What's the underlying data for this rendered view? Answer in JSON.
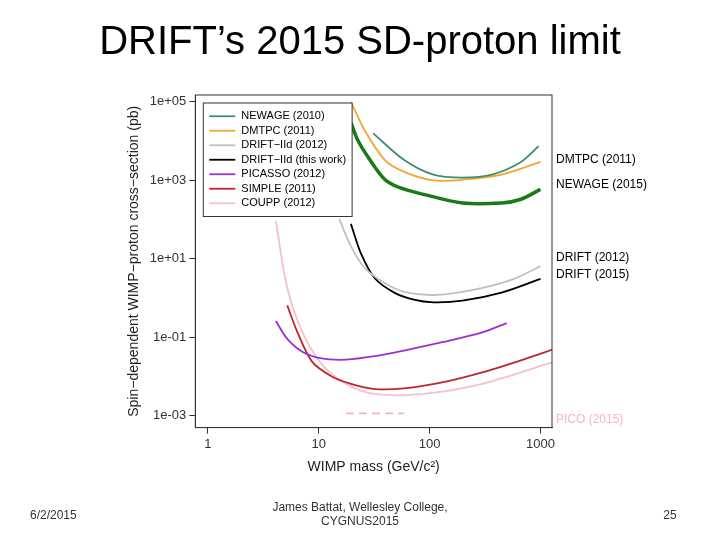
{
  "slide": {
    "title": "DRIFT’s 2015 SD-proton limit",
    "date": "6/2/2015",
    "author": "James Battat, Wellesley College, CYGNUS2015",
    "page": 25
  },
  "chart_data": {
    "type": "line",
    "x_label": "WIMP mass (GeV/c²)",
    "y_label": "Spin−dependent WIMP−proton cross−section (pb)",
    "log": true,
    "grid": false,
    "legend": "upper left",
    "xlim": [
      0.77,
      1270
    ],
    "xticks": [
      1,
      10,
      100,
      1000
    ],
    "ylim": [
      0.0005,
      150000
    ],
    "yticks": [
      {
        "value": 0.001,
        "label": "1e-03"
      },
      {
        "value": 0.1,
        "label": "1e-01"
      },
      {
        "value": 10,
        "label": "1e+01"
      },
      {
        "value": 1000,
        "label": "1e+03"
      },
      {
        "value": 100000,
        "label": "1e+05"
      }
    ],
    "series": [
      {
        "name": "NEWAGE (2010)",
        "color": "#3d8f70",
        "line_style": "solid",
        "x": [
          31,
          59,
          108,
          198,
          364,
          667,
          960
        ],
        "values": [
          15800,
          3300,
          1400,
          1180,
          1400,
          2950,
          7400
        ]
      },
      {
        "name": "DMTPC (2011)",
        "color": "#f0a830",
        "line_style": "solid",
        "x": [
          19.5,
          26,
          39.5,
          59,
          108,
          198,
          445,
          1000
        ],
        "values": [
          100000,
          18700,
          3300,
          1650,
          1000,
          1040,
          1400,
          2950
        ]
      },
      {
        "name": "DRIFT−IId (2012)",
        "color": "#c0c0c0",
        "line_style": "solid",
        "x": [
          15.3,
          19.5,
          26,
          39.5,
          59,
          108,
          242,
          545,
          1000
        ],
        "values": [
          104,
          21,
          5.8,
          2.4,
          1.45,
          1.2,
          1.6,
          2.9,
          6.5
        ]
      },
      {
        "name": "DRIFT−IId (this work)",
        "color": "#000000",
        "line_style": "solid",
        "x": [
          19.5,
          24,
          32,
          48,
          72,
          108,
          198,
          445,
          1000
        ],
        "values": [
          78,
          13.8,
          3.2,
          1.38,
          0.91,
          0.78,
          0.86,
          1.38,
          3.1
        ]
      },
      {
        "name": "PICASSO (2012)",
        "color": "#9b30d0",
        "line_style": "solid",
        "x": [
          4.1,
          5.2,
          7.1,
          10.6,
          17.6,
          32,
          59,
          133,
          298,
          495
        ],
        "values": [
          0.26,
          0.091,
          0.043,
          0.029,
          0.027,
          0.033,
          0.046,
          0.076,
          0.134,
          0.23
        ]
      },
      {
        "name": "SIMPLE (2011)",
        "color": "#c0262b",
        "line_style": "solid",
        "x": [
          5.2,
          6.4,
          8.7,
          13,
          19.5,
          32,
          59,
          133,
          298,
          667,
          1270
        ],
        "values": [
          0.65,
          0.138,
          0.024,
          0.0102,
          0.0065,
          0.0048,
          0.005,
          0.0072,
          0.0128,
          0.026,
          0.048
        ]
      },
      {
        "name": "COUPP (2012)",
        "color": "#f4c2cc",
        "line_style": "solid",
        "x": [
          4.1,
          5.2,
          7.1,
          10.6,
          17.6,
          32,
          88,
          298,
          1270
        ],
        "values": [
          93,
          1.8,
          0.138,
          0.021,
          0.0065,
          0.0036,
          0.0036,
          0.0065,
          0.023
        ]
      },
      {
        "color": "#1a7a1a",
        "line_style": "thick",
        "x": [
          19.5,
          22.5,
          29,
          39.5,
          53,
          88,
          198,
          445,
          667,
          1000
        ],
        "values": [
          30000,
          10500,
          3300,
          1050,
          660,
          440,
          265,
          265,
          330,
          590
        ]
      },
      {
        "color": "#f4b6c2",
        "line_style": "dashed",
        "x": [
          17.6,
          59
        ],
        "values": [
          0.00115,
          0.00115
        ]
      }
    ],
    "annotations": [
      {
        "text": "DMTPC (2011)",
        "color": "#000000"
      },
      {
        "text": "NEWAGE (2015)",
        "color": "#000000"
      },
      {
        "text": "DRIFT (2012)",
        "color": "#000000"
      },
      {
        "text": "DRIFT (2015)",
        "color": "#000000"
      },
      {
        "text": "PICO (2015)",
        "color": "#f4b6c2"
      }
    ]
  }
}
